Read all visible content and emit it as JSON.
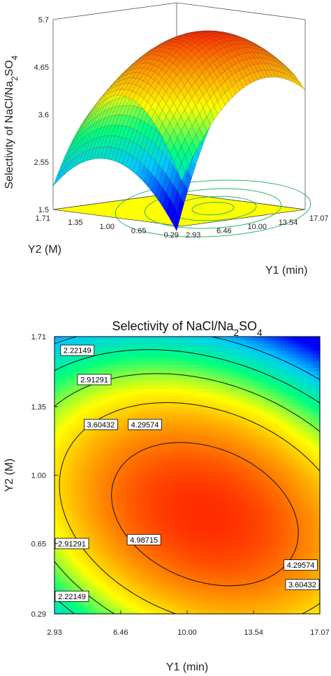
{
  "chart_data": [
    {
      "type": "surface-3d",
      "zlabel": "Selectivity of NaCl/Na2SO4",
      "xlabel": "Y1 (min)",
      "ylabel": "Y2 (M)",
      "x_ticks": [
        "2.93",
        "6.46",
        "10.00",
        "13.54",
        "17.07"
      ],
      "y_ticks": [
        "0.29",
        "0.65",
        "1.00",
        "1.35",
        "1.71"
      ],
      "z_ticks": [
        "1.5",
        "2.55",
        "3.6",
        "4.65",
        "5.7"
      ],
      "xlim": [
        2.93,
        17.07
      ],
      "ylim": [
        0.29,
        1.71
      ],
      "zlim": [
        1.5,
        5.7
      ],
      "floor_color": "#ffff00",
      "colormap": [
        "#0000ff",
        "#00c8ff",
        "#00ff80",
        "#ffff00",
        "#ff8000",
        "#ff0000"
      ]
    },
    {
      "type": "contour",
      "title": "Selectivity of NaCl/Na2SO4",
      "xlabel": "Y1 (min)",
      "ylabel": "Y2 (M)",
      "x_ticks": [
        "2.93",
        "6.46",
        "10.00",
        "13.54",
        "17.07"
      ],
      "y_ticks": [
        "0.29",
        "0.65",
        "1.00",
        "1.35",
        "1.71"
      ],
      "xlim": [
        2.93,
        17.07
      ],
      "ylim": [
        0.29,
        1.71
      ],
      "levels": [
        2.22149,
        2.91291,
        3.60432,
        4.29574,
        4.98715
      ],
      "labels": [
        {
          "text": "2.22149",
          "x": 4.15,
          "y": 1.64
        },
        {
          "text": "2.91291",
          "x": 5.05,
          "y": 1.49
        },
        {
          "text": "3.60432",
          "x": 5.4,
          "y": 1.26
        },
        {
          "text": "4.29574",
          "x": 7.75,
          "y": 1.26
        },
        {
          "text": "4.98715",
          "x": 7.7,
          "y": 0.67
        },
        {
          "text": "2.91291",
          "x": 3.85,
          "y": 0.65
        },
        {
          "text": "2.22149",
          "x": 3.85,
          "y": 0.38
        },
        {
          "text": "4.29574",
          "x": 16.05,
          "y": 0.54
        },
        {
          "text": "3.60432",
          "x": 16.3,
          "y": 0.44
        }
      ]
    }
  ]
}
